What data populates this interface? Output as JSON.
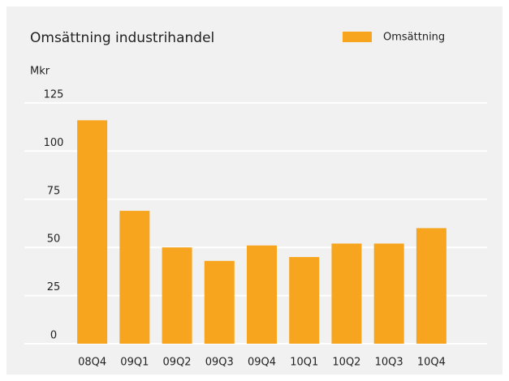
{
  "chart_data": {
    "type": "bar",
    "title": "Omsättning industrihandel",
    "y_label": "Mkr",
    "categories": [
      "08Q4",
      "09Q1",
      "09Q2",
      "09Q3",
      "09Q4",
      "10Q1",
      "10Q2",
      "10Q3",
      "10Q4"
    ],
    "series": [
      {
        "name": "Omsättning",
        "color": "#f7a51e",
        "values": [
          116,
          69,
          50,
          43,
          51,
          45,
          52,
          52,
          60
        ]
      }
    ],
    "ylim": [
      0,
      125
    ],
    "yticks": [
      0,
      25,
      50,
      75,
      100,
      125
    ],
    "grid": true,
    "legend": "top-right"
  }
}
